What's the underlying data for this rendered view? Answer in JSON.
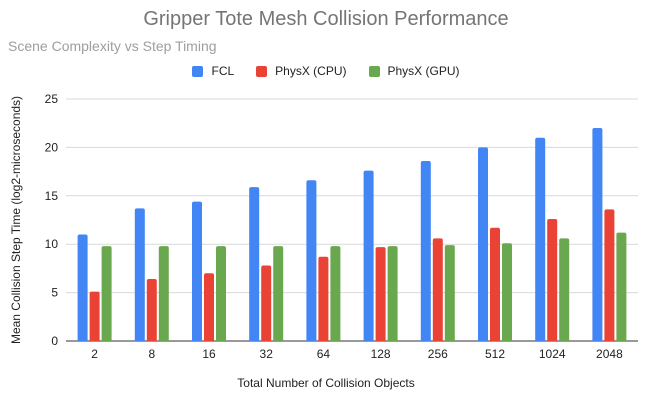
{
  "chart_data": {
    "type": "bar",
    "title": "Gripper Tote Mesh Collision Performance",
    "subtitle": "Scene Complexity vs Step Timing",
    "xlabel": "Total Number of Collision Objects",
    "ylabel": "Mean Collision Step Time (log2-microseconds)",
    "categories": [
      "2",
      "8",
      "16",
      "32",
      "64",
      "128",
      "256",
      "512",
      "1024",
      "2048"
    ],
    "ylim": [
      0,
      25
    ],
    "yticks": [
      0,
      5,
      10,
      15,
      20,
      25
    ],
    "grid": true,
    "legend_position": "top",
    "series": [
      {
        "name": "FCL",
        "color": "#4285f4",
        "values": [
          11.0,
          13.7,
          14.4,
          15.9,
          16.6,
          17.6,
          18.6,
          20.0,
          21.0,
          22.0
        ]
      },
      {
        "name": "PhysX (CPU)",
        "color": "#ea4335",
        "values": [
          5.1,
          6.4,
          7.0,
          7.8,
          8.7,
          9.7,
          10.6,
          11.7,
          12.6,
          13.6
        ]
      },
      {
        "name": "PhysX (GPU)",
        "color": "#6aa84f",
        "values": [
          9.8,
          9.8,
          9.8,
          9.8,
          9.8,
          9.8,
          9.9,
          10.1,
          10.6,
          11.2
        ]
      }
    ]
  }
}
